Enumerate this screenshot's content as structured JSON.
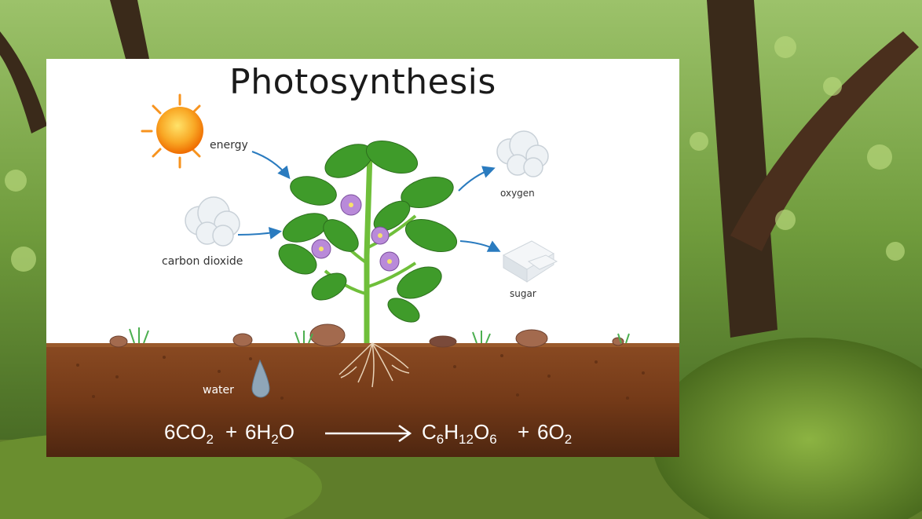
{
  "background": {
    "description_icon": "forest-photo"
  },
  "diagram": {
    "title": "Photosynthesis",
    "labels": {
      "energy": "energy",
      "carbon_dioxide": "carbon dioxide",
      "oxygen": "oxygen",
      "sugar": "sugar",
      "water": "water"
    },
    "equation": {
      "reactant_1": {
        "coef": "6",
        "a": "CO",
        "a_sub": "2"
      },
      "plus_1": "+",
      "reactant_2": {
        "coef": "6",
        "a": "H",
        "a_sub": "2",
        "b": "O"
      },
      "product_1": {
        "a": "C",
        "a_sub": "6",
        "b": "H",
        "b_sub": "12",
        "c": "O",
        "c_sub": "6"
      },
      "plus_2": "+",
      "product_2": {
        "coef": "6",
        "a": "O",
        "a_sub": "2"
      }
    }
  },
  "colors": {
    "soil": "#7a3f1d",
    "soil_dark": "#5a2c12",
    "leaf": "#3f9b2a",
    "flower": "#b98ad9",
    "sun": "#f7931e",
    "arrow": "#2a7bbf"
  }
}
